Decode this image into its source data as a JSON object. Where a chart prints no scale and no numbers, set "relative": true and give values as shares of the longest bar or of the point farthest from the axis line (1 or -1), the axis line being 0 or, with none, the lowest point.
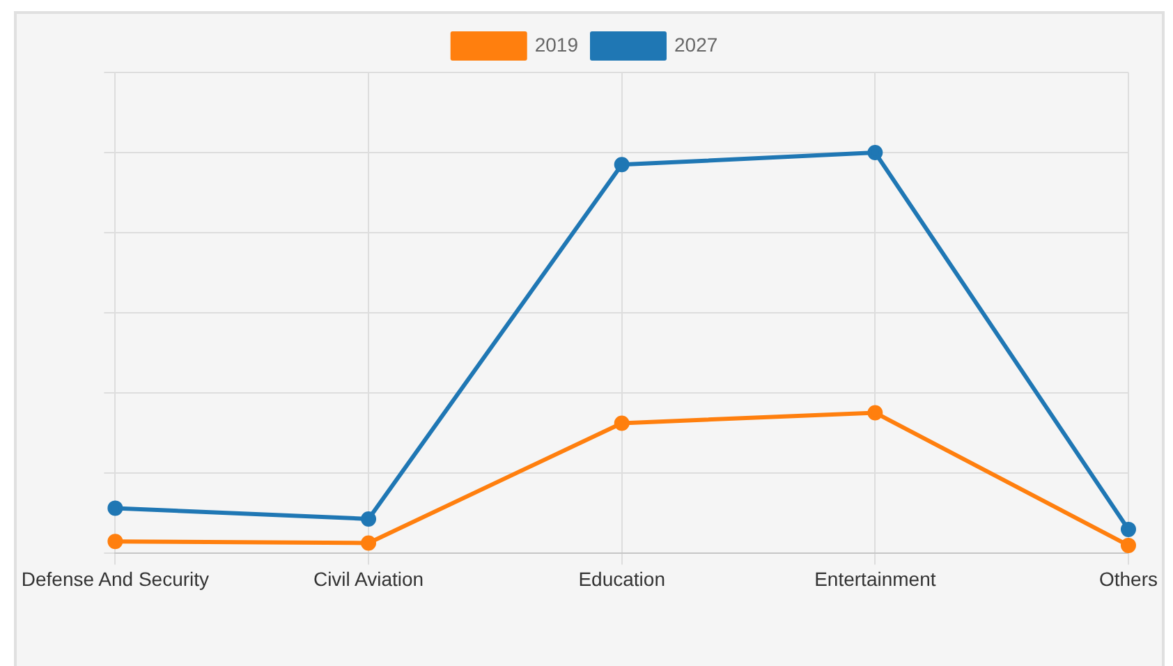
{
  "chart_data": {
    "type": "line",
    "relative": true,
    "categories": [
      "Defense And Security",
      "Civil Aviation",
      "Education",
      "Entertainment",
      "Others"
    ],
    "series": [
      {
        "name": "2019",
        "color": "#ff7f0e",
        "values": [
          0.03,
          0.026,
          0.325,
          0.351,
          0.02
        ]
      },
      {
        "name": "2027",
        "color": "#1f77b4",
        "values": [
          0.113,
          0.086,
          0.97,
          1,
          0.06
        ]
      }
    ],
    "grid": true,
    "legend": "top",
    "marker": "circle",
    "line_style": "solid"
  }
}
